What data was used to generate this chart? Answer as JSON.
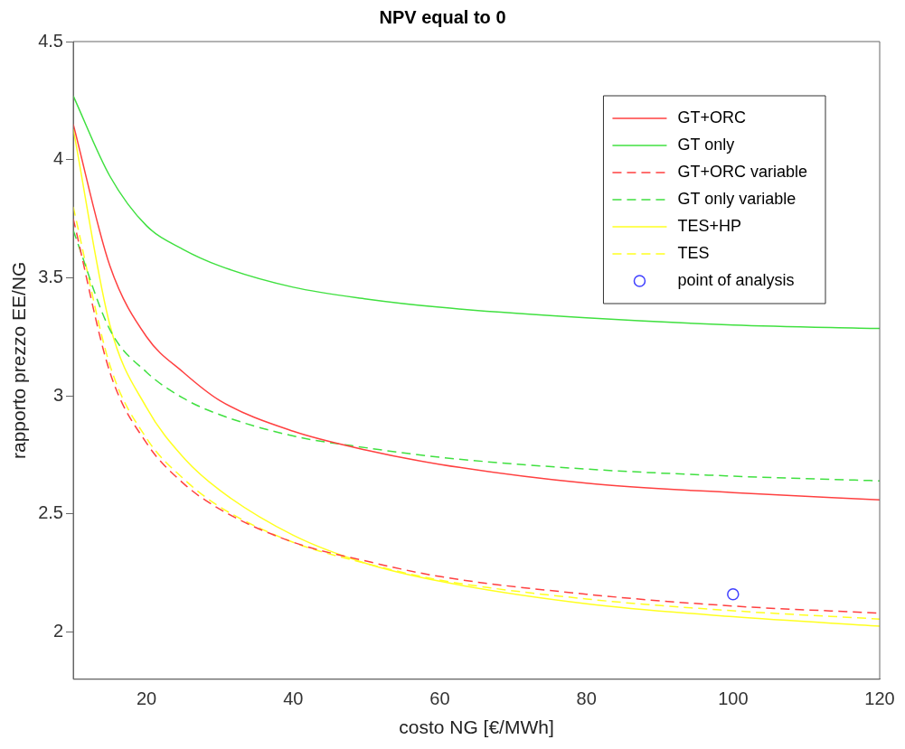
{
  "chart_data": {
    "type": "line",
    "title": "NPV equal to 0",
    "xlabel": "costo NG [€/MWh]",
    "ylabel": "rapporto prezzo EE/NG",
    "xlim": [
      10,
      120
    ],
    "xticks": [
      20,
      40,
      60,
      80,
      100,
      120
    ],
    "ylim": [
      1.8,
      4.5
    ],
    "yticks": [
      2,
      2.5,
      3,
      3.5,
      4,
      4.5
    ],
    "grid": false,
    "legend": "top right",
    "marker": "none",
    "x": [
      10,
      15,
      20,
      25,
      30,
      40,
      50,
      60,
      80,
      100,
      120
    ],
    "series": [
      {
        "name": "GT+ORC",
        "color": "#ff4040",
        "line_style": "solid",
        "values": [
          4.15,
          3.55,
          3.25,
          3.1,
          2.98,
          2.85,
          2.77,
          2.71,
          2.63,
          2.59,
          2.56
        ]
      },
      {
        "name": "GT only",
        "color": "#40e040",
        "line_style": "solid",
        "values": [
          4.27,
          3.93,
          3.72,
          3.62,
          3.55,
          3.46,
          3.41,
          3.375,
          3.33,
          3.3,
          3.285
        ]
      },
      {
        "name": "GT+ORC variable",
        "color": "#ff4040",
        "line_style": "dashed",
        "values": [
          3.75,
          3.1,
          2.8,
          2.63,
          2.52,
          2.38,
          2.3,
          2.235,
          2.16,
          2.11,
          2.08
        ]
      },
      {
        "name": "GT only variable",
        "color": "#40e040",
        "line_style": "dashed",
        "values": [
          3.7,
          3.28,
          3.1,
          2.99,
          2.92,
          2.83,
          2.78,
          2.74,
          2.69,
          2.66,
          2.64
        ]
      },
      {
        "name": "TES+HP",
        "color": "#ffff20",
        "line_style": "solid",
        "values": [
          4.13,
          3.3,
          2.95,
          2.74,
          2.6,
          2.41,
          2.29,
          2.215,
          2.12,
          2.065,
          2.025
        ]
      },
      {
        "name": "TES",
        "color": "#ffff20",
        "line_style": "dashed",
        "values": [
          3.8,
          3.13,
          2.82,
          2.65,
          2.53,
          2.38,
          2.29,
          2.22,
          2.14,
          2.09,
          2.055
        ]
      },
      {
        "name": "point of analysis",
        "type": "scatter",
        "marker": "circle",
        "color": "#4040ff",
        "x": [
          100
        ],
        "values": [
          2.16
        ]
      }
    ]
  }
}
